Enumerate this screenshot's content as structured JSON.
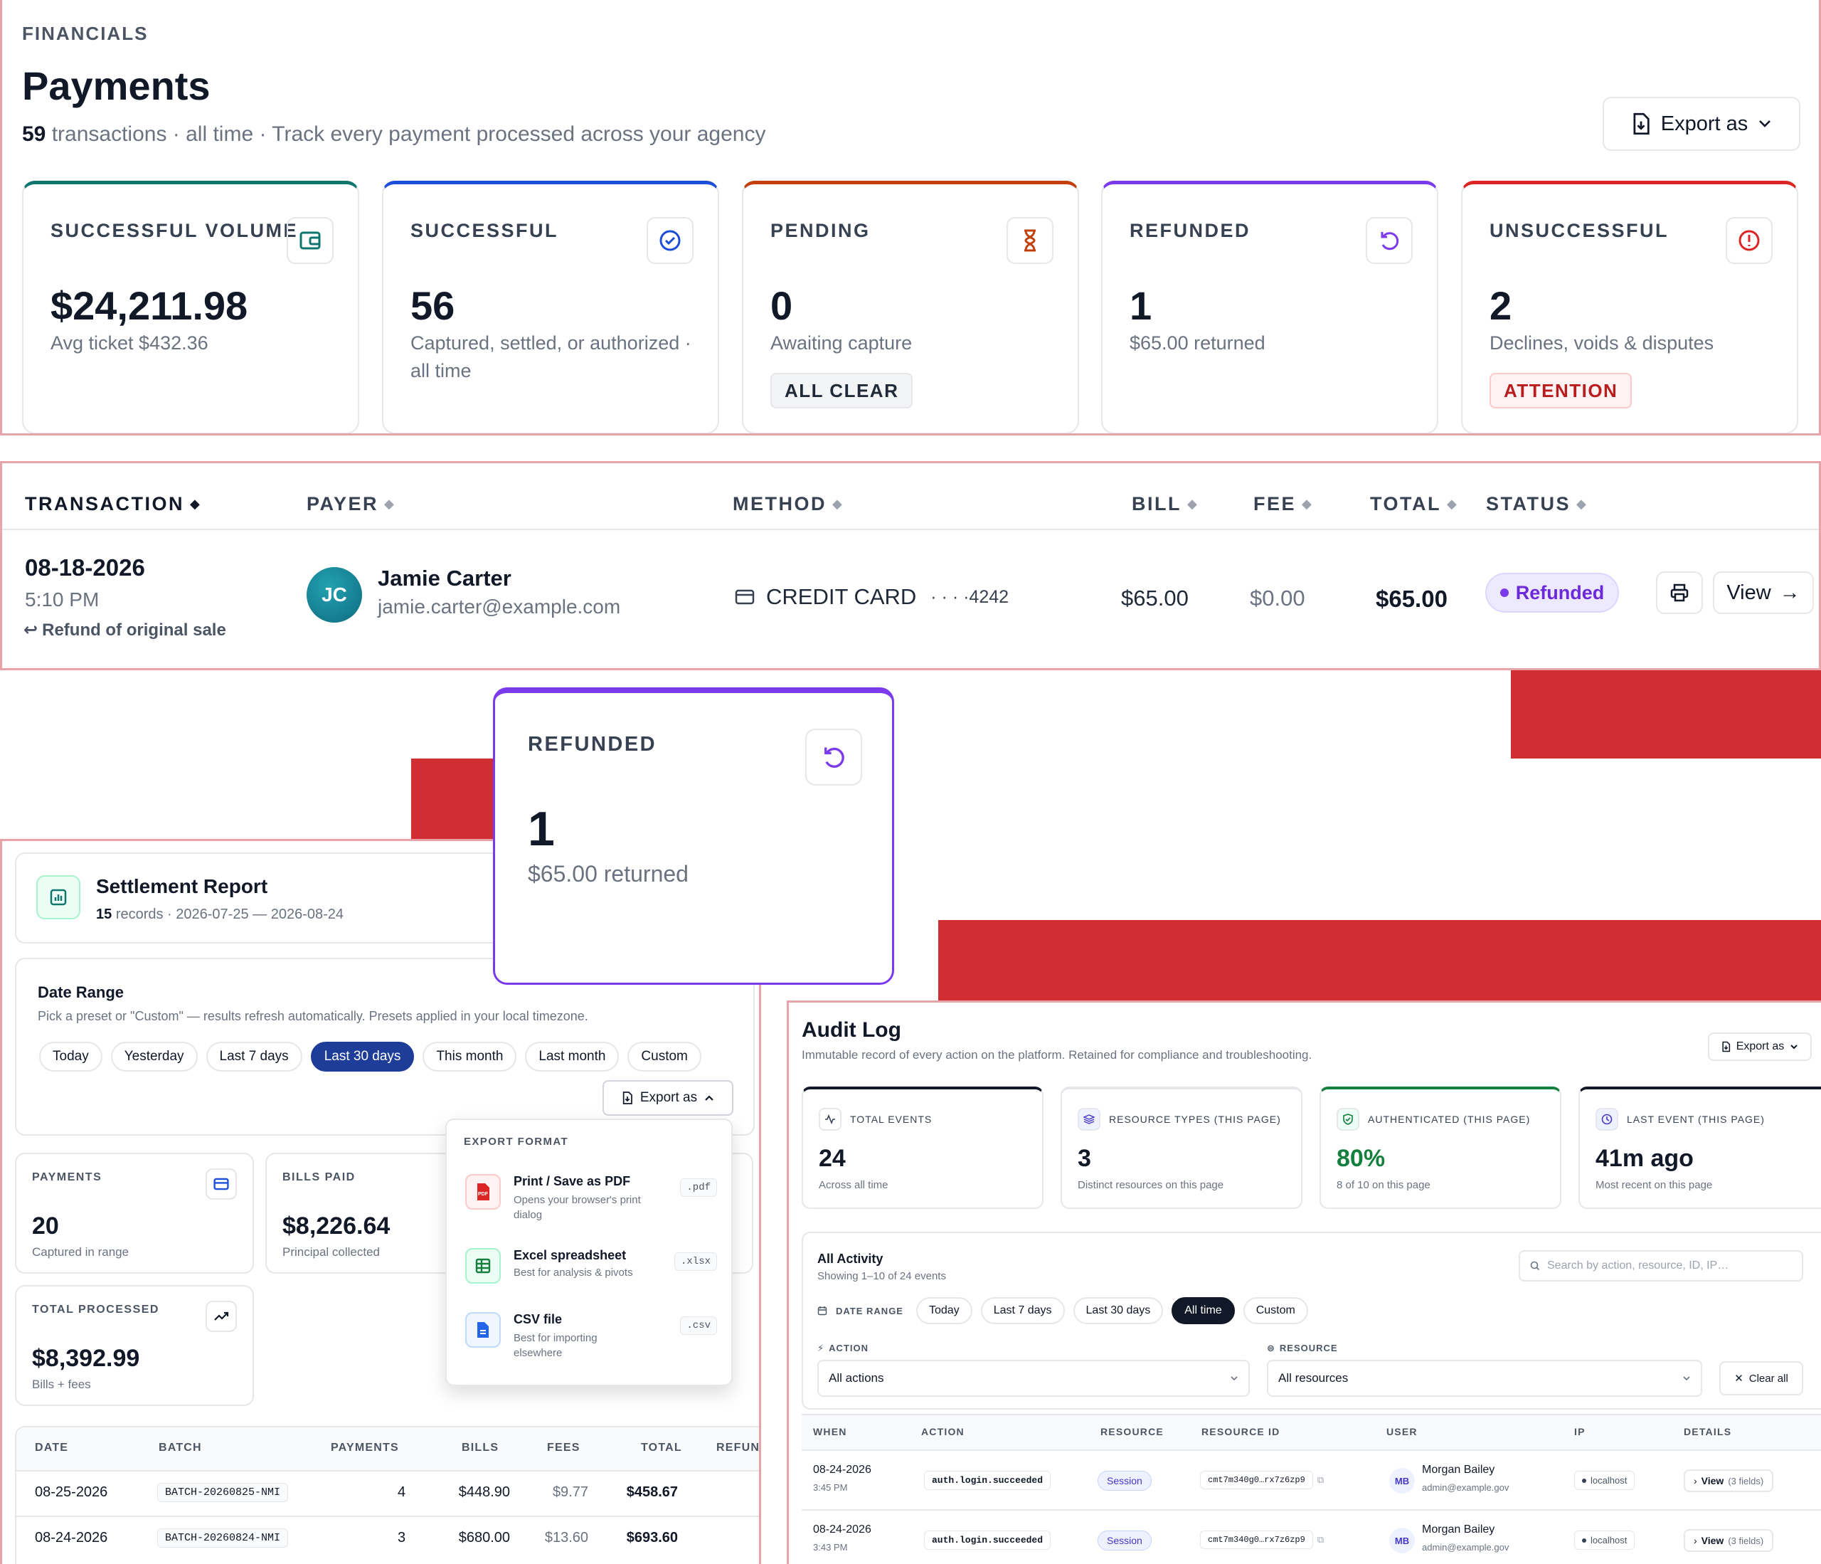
{
  "colors": {
    "accent": "#1d3d99",
    "redblock": "#d12e33",
    "teal": "#0f766e",
    "purple": "#6d28d9",
    "orange": "#c2410c",
    "danger": "#dc2626"
  },
  "header": {
    "eyebrow": "FINANCIALS",
    "title": "Payments",
    "count": "59",
    "subtitle": "transactions · all time · Track every payment processed across your agency",
    "export_label": "Export as"
  },
  "kpis": [
    {
      "label": "SUCCESSFUL VOLUME",
      "value": "$24,211.98",
      "sub": "Avg ticket $432.36",
      "icon": "wallet-icon",
      "color": "#0f766e"
    },
    {
      "label": "SUCCESSFUL",
      "value": "56",
      "sub": "Captured, settled, or authorized · all time",
      "icon": "check-circle-icon",
      "color": "#1d4ed8"
    },
    {
      "label": "PENDING",
      "value": "0",
      "sub": "Awaiting capture",
      "pill": "ALL CLEAR",
      "icon": "hourglass-icon",
      "color": "#c2410c"
    },
    {
      "label": "REFUNDED",
      "value": "1",
      "sub": "$65.00 returned",
      "icon": "refresh-icon",
      "color": "#7c3aed"
    },
    {
      "label": "UNSUCCESSFUL",
      "value": "2",
      "sub": "Declines, voids & disputes",
      "pill": "ATTENTION",
      "icon": "alert-circle-icon",
      "color": "#dc2626"
    }
  ],
  "table": {
    "headers": {
      "transaction": "TRANSACTION",
      "payer": "PAYER",
      "method": "METHOD",
      "bill": "BILL",
      "fee": "FEE",
      "total": "TOTAL",
      "status": "STATUS"
    },
    "row": {
      "date": "08-18-2026",
      "time": "5:10 PM",
      "note": "Refund of original sale",
      "initials": "JC",
      "name": "Jamie Carter",
      "email": "jamie.carter@example.com",
      "method": "CREDIT CARD",
      "last4": "· · · ·4242",
      "bill": "$65.00",
      "fee": "$0.00",
      "total": "$65.00",
      "status": "Refunded",
      "view": "View"
    }
  },
  "zoom_card": {
    "label": "REFUNDED",
    "value": "1",
    "sub": "$65.00 returned",
    "icon": "refresh-icon"
  },
  "settlement": {
    "title": "Settlement Report",
    "count": "15",
    "meta": "records · 2026-07-25 — 2026-08-24",
    "date_range": {
      "title": "Date Range",
      "hint": "Pick a preset or \"Custom\" — results refresh automatically. Presets applied in your local timezone.",
      "presets": [
        "Today",
        "Yesterday",
        "Last 7 days",
        "Last 30 days",
        "This month",
        "Last month",
        "Custom"
      ],
      "active": "Last 30 days"
    },
    "export_label": "Export as",
    "export_menu": {
      "heading": "EXPORT FORMAT",
      "items": [
        {
          "title": "Print / Save as PDF",
          "desc": "Opens your browser's print dialog",
          "ext": ".pdf"
        },
        {
          "title": "Excel spreadsheet",
          "desc": "Best for analysis & pivots",
          "ext": ".xlsx"
        },
        {
          "title": "CSV file",
          "desc": "Best for importing elsewhere",
          "ext": ".csv"
        }
      ]
    },
    "cards": [
      {
        "label": "PAYMENTS",
        "value": "20",
        "sub": "Captured in range"
      },
      {
        "label": "BILLS PAID",
        "value": "$8,226.64",
        "sub": "Principal collected"
      },
      {
        "label": "TOTAL PROCESSED",
        "value": "$8,392.99",
        "sub": "Bills + fees"
      }
    ],
    "columns": [
      "DATE",
      "BATCH",
      "PAYMENTS",
      "BILLS",
      "FEES",
      "TOTAL",
      "REFUN"
    ],
    "rows": [
      {
        "date": "08-25-2026",
        "batch": "BATCH-20260825-NMI",
        "payments": "4",
        "bills": "$448.90",
        "fees": "$9.77",
        "total": "$458.67"
      },
      {
        "date": "08-24-2026",
        "batch": "BATCH-20260824-NMI",
        "payments": "3",
        "bills": "$680.00",
        "fees": "$13.60",
        "total": "$693.60"
      }
    ]
  },
  "audit": {
    "title": "Audit Log",
    "subtitle": "Immutable record of every action on the platform. Retained for compliance and troubleshooting.",
    "export_label": "Export as",
    "cards": [
      {
        "label": "TOTAL EVENTS",
        "value": "24",
        "sub": "Across all time",
        "icon": "activity-icon"
      },
      {
        "label": "RESOURCE TYPES (THIS PAGE)",
        "value": "3",
        "sub": "Distinct resources on this page",
        "icon": "layers-icon"
      },
      {
        "label": "AUTHENTICATED (THIS PAGE)",
        "value": "80%",
        "sub": "8 of 10 on this page",
        "icon": "shield-icon"
      },
      {
        "label": "LAST EVENT (THIS PAGE)",
        "value": "41m ago",
        "sub": "Most recent on this page",
        "icon": "clock-icon"
      }
    ],
    "activity": {
      "title": "All Activity",
      "sub": "Showing 1–10 of 24 events",
      "search_placeholder": "Search by action, resource, ID, IP…",
      "date_range_label": "DATE RANGE",
      "presets": [
        "Today",
        "Last 7 days",
        "Last 30 days",
        "All time",
        "Custom"
      ],
      "active": "All time",
      "action_label": "ACTION",
      "action_value": "All actions",
      "resource_label": "RESOURCE",
      "resource_value": "All resources",
      "clear": "Clear all"
    },
    "columns": [
      "WHEN",
      "ACTION",
      "RESOURCE",
      "RESOURCE ID",
      "USER",
      "IP",
      "DETAILS"
    ],
    "rows": [
      {
        "date": "08-24-2026",
        "time": "3:45 PM",
        "action": "auth.login.succeeded",
        "resource": "Session",
        "rid": "cmt7m340g0…rx7z6zp9",
        "initials": "MB",
        "user": "Morgan Bailey",
        "email": "admin@example.gov",
        "ip": "localhost",
        "view": "View",
        "fields": "(3 fields)"
      },
      {
        "date": "08-24-2026",
        "time": "3:43 PM",
        "action": "auth.login.succeeded",
        "resource": "Session",
        "rid": "cmt7m340g0…rx7z6zp9",
        "initials": "MB",
        "user": "Morgan Bailey",
        "email": "admin@example.gov",
        "ip": "localhost",
        "view": "View",
        "fields": "(3 fields)"
      }
    ]
  }
}
